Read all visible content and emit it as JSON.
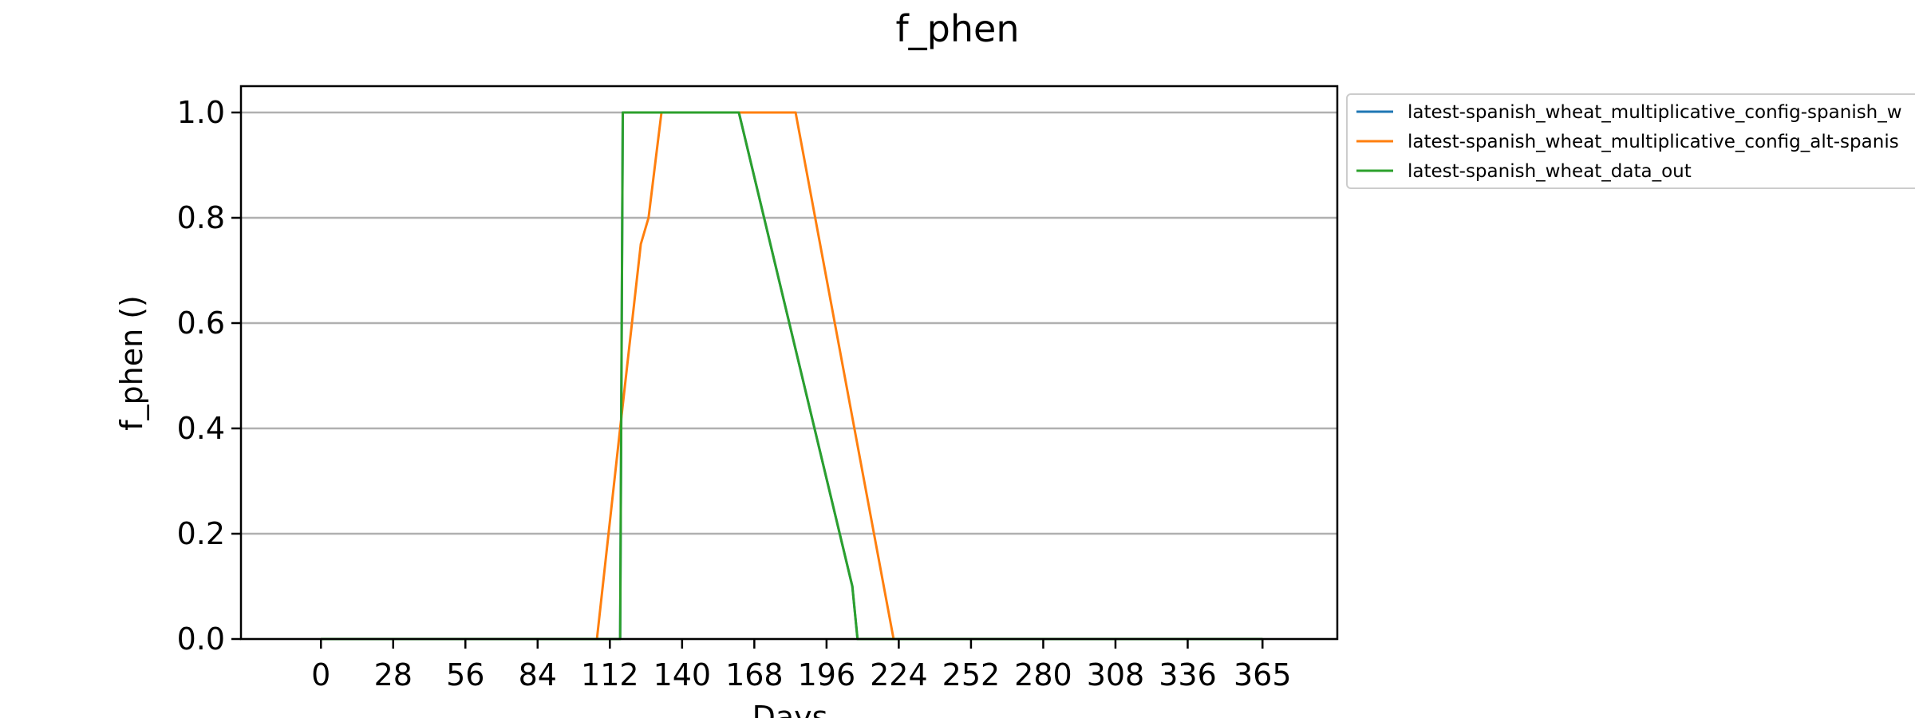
{
  "chart_data": {
    "type": "line",
    "title": "f_phen",
    "xlabel": "Days",
    "ylabel": "f_phen ()",
    "xlim": [
      -31,
      394
    ],
    "ylim": [
      0,
      1.05
    ],
    "x_ticks": [
      0,
      28,
      56,
      84,
      112,
      140,
      168,
      196,
      224,
      252,
      280,
      308,
      336,
      365
    ],
    "y_ticks": [
      0.0,
      0.2,
      0.4,
      0.6,
      0.8,
      1.0
    ],
    "y_tick_labels": [
      "0.0",
      "0.2",
      "0.4",
      "0.6",
      "0.8",
      "1.0"
    ],
    "grid": "horizontal",
    "legend_position": "outside-top-right",
    "series": [
      {
        "name": "latest-spanish_wheat_multiplicative_config-spanish_w",
        "color": "#1f77b4",
        "x": [
          0,
          116,
          117,
          162,
          206,
          208,
          365
        ],
        "y": [
          0,
          0,
          1,
          1,
          0.1,
          0,
          0
        ]
      },
      {
        "name": "latest-spanish_wheat_multiplicative_config_alt-spanis",
        "color": "#ff7f0e",
        "x": [
          0,
          107,
          116,
          124,
          127,
          130,
          132,
          184,
          222,
          365
        ],
        "y": [
          0,
          0,
          0.4,
          0.75,
          0.8,
          0.92,
          1,
          1,
          0,
          0
        ]
      },
      {
        "name": "latest-spanish_wheat_data_out",
        "color": "#2ca02c",
        "x": [
          0,
          116,
          117,
          162,
          206,
          208,
          365
        ],
        "y": [
          0,
          0,
          1,
          1,
          0.1,
          0,
          0
        ]
      }
    ]
  }
}
